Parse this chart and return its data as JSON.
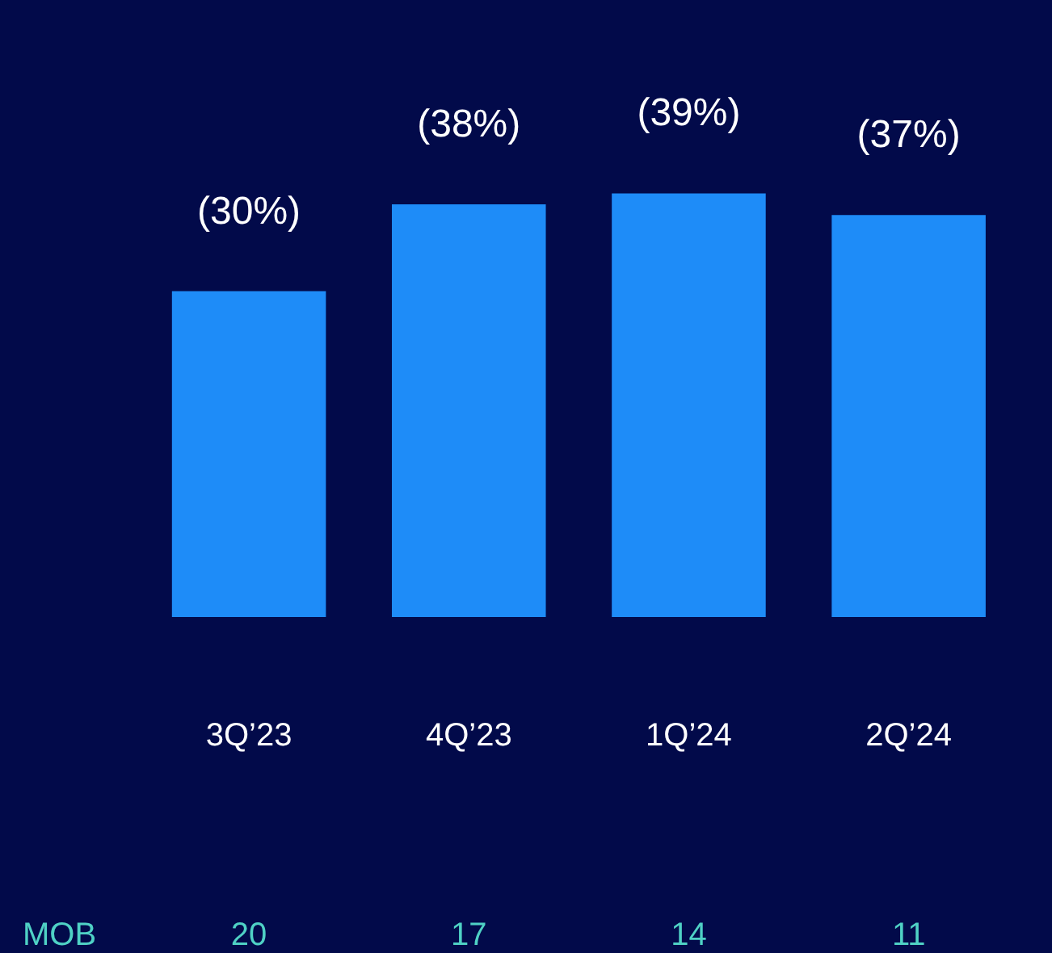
{
  "chart_data": {
    "type": "bar",
    "categories": [
      "3Q’23",
      "4Q’23",
      "1Q’24",
      "2Q’24"
    ],
    "values": [
      30,
      38,
      39,
      37
    ],
    "color": "#1e8cf8",
    "value_labels": [
      "(30%)",
      "(38%)",
      "(39%)",
      "(37%)"
    ],
    "annotations": [
      "MOB",
      "20",
      "17",
      "14",
      "11"
    ],
    "grid": false,
    "legend": false
  }
}
